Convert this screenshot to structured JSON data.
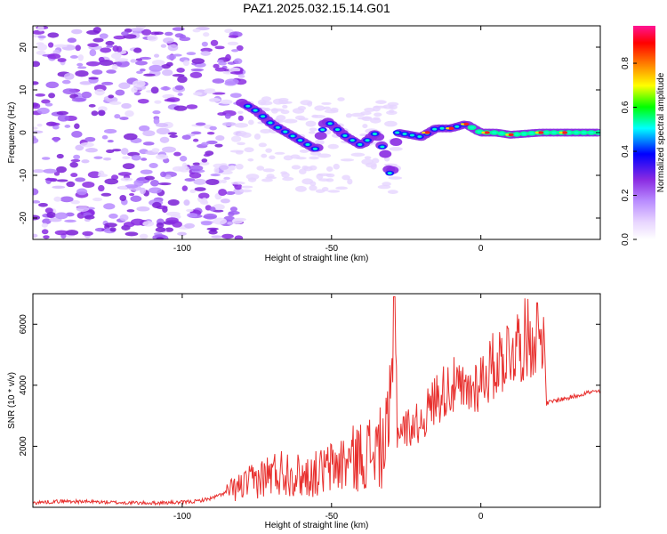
{
  "figure": {
    "title": "PAZ1.2025.032.15.14.G01"
  },
  "chart_data": [
    {
      "type": "heatmap",
      "xlabel": "Height of straight line (km)",
      "ylabel": "Frequency (Hz)",
      "xlim": [
        -150,
        40
      ],
      "ylim": [
        -25,
        25
      ],
      "x_ticks": [
        -100,
        -50,
        0
      ],
      "y_ticks": [
        -20,
        -10,
        0,
        10,
        20
      ],
      "colorbar": {
        "label": "Normalized spectral amplitude",
        "range": [
          0.0,
          0.97
        ],
        "ticks": [
          0.0,
          0.2,
          0.4,
          0.6,
          0.8
        ],
        "colormap": [
          "#ffffff",
          "#e8d6ff",
          "#b98cff",
          "#8a2be2",
          "#0000ff",
          "#00ffff",
          "#00ff00",
          "#ffff00",
          "#ff8000",
          "#ff0000",
          "#ff1493"
        ]
      },
      "ridge": {
        "description_points_x": [
          -80,
          -75,
          -70,
          -65,
          -60,
          -55,
          -52,
          -45,
          -40,
          -35,
          -32,
          -30,
          -28,
          -20,
          -15,
          -10,
          -5,
          0,
          5,
          10,
          20,
          30,
          40
        ],
        "description_points_y": [
          7,
          5,
          2,
          0,
          -2,
          -4,
          3,
          -1,
          -3,
          0,
          -5,
          -11,
          0,
          -1,
          1,
          1,
          2,
          0,
          0,
          -0.5,
          0,
          0,
          0
        ]
      }
    },
    {
      "type": "line",
      "xlabel": "Height of straight line (km)",
      "ylabel": "SNR (10 * v/v)",
      "xlim": [
        -150,
        40
      ],
      "ylim": [
        0,
        7000
      ],
      "x_ticks": [
        -100,
        -50,
        0
      ],
      "y_ticks": [
        2000,
        4000,
        6000
      ],
      "color": "#e8302e",
      "series": [
        {
          "x": [
            -150,
            -140,
            -130,
            -120,
            -110,
            -100,
            -95,
            -90,
            -85,
            -80,
            -75,
            -70,
            -65,
            -60,
            -55,
            -50,
            -45,
            -40,
            -35,
            -32,
            -30,
            -29,
            -28,
            -25,
            -20,
            -15,
            -10,
            -5,
            0,
            5,
            10,
            15,
            20,
            21,
            22,
            25,
            30,
            35,
            40
          ],
          "y": [
            150,
            200,
            180,
            150,
            140,
            160,
            200,
            300,
            500,
            700,
            900,
            1100,
            1200,
            1000,
            1100,
            1300,
            1500,
            1700,
            1900,
            2000,
            3000,
            6800,
            2500,
            2600,
            2800,
            3600,
            4000,
            3700,
            4200,
            4700,
            5200,
            5500,
            5800,
            6200,
            3400,
            3500,
            3600,
            3750,
            3800
          ]
        }
      ]
    }
  ]
}
